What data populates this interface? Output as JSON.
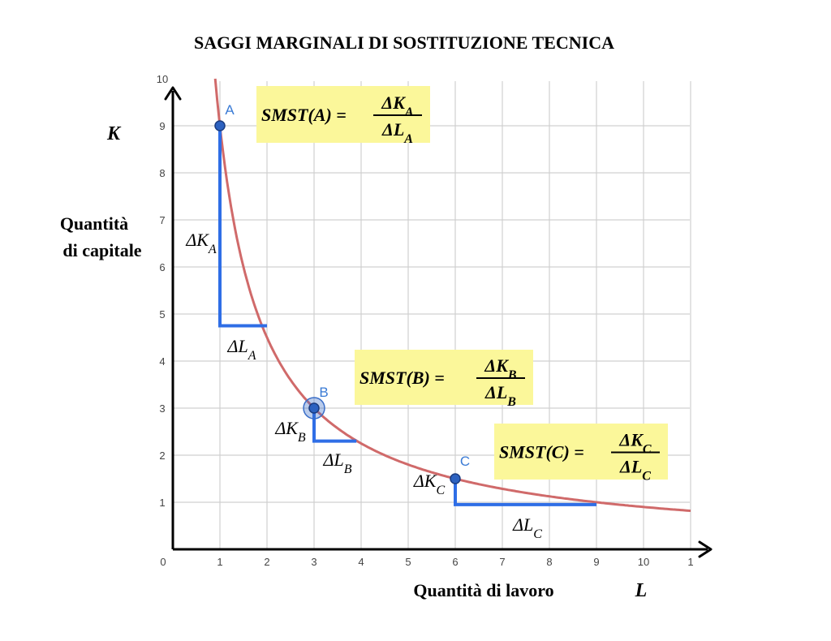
{
  "chart_data": {
    "type": "line",
    "title": "SAGGI MARGINALI DI SOSTITUZIONE TECNICA",
    "xlabel": "Quantità di lavoro",
    "xsymbol": "L",
    "ylabel_line1": "Quantità",
    "ylabel_line2": "di capitale",
    "ysymbol": "K",
    "xlim": [
      0,
      11
    ],
    "ylim": [
      0,
      10
    ],
    "x_ticks": [
      "0",
      "1",
      "2",
      "3",
      "4",
      "5",
      "6",
      "7",
      "8",
      "9",
      "10",
      "1"
    ],
    "y_ticks": [
      "1",
      "2",
      "3",
      "4",
      "5",
      "6",
      "7",
      "8",
      "9",
      "10"
    ],
    "grid": true,
    "curve": {
      "type": "isoquant",
      "equation": "K = 9 / L",
      "x_range": [
        0.9,
        11
      ],
      "color": "#d06a6a"
    },
    "points": [
      {
        "label": "A",
        "x": 1,
        "y": 9
      },
      {
        "label": "B",
        "x": 3,
        "y": 3
      },
      {
        "label": "C",
        "x": 6,
        "y": 1.5
      }
    ],
    "steps": [
      {
        "from": [
          1,
          9
        ],
        "corner": [
          1,
          4.75
        ],
        "to": [
          2,
          4.75
        ],
        "dK": "ΔK",
        "dK_sub": "A",
        "dL": "ΔL",
        "dL_sub": "A"
      },
      {
        "from": [
          3,
          3
        ],
        "corner": [
          3,
          2.3
        ],
        "to": [
          3.9,
          2.3
        ],
        "dK": "ΔK",
        "dK_sub": "B",
        "dL": "ΔL",
        "dL_sub": "B"
      },
      {
        "from": [
          6,
          1.5
        ],
        "corner": [
          6,
          0.95
        ],
        "to": [
          9,
          0.95
        ],
        "dK": "ΔK",
        "dK_sub": "C",
        "dL": "ΔL",
        "dL_sub": "C"
      }
    ],
    "formulas": [
      {
        "lhs": "SMST(A) =",
        "num": "ΔK",
        "num_sub": "A",
        "den": "ΔL",
        "den_sub": "A"
      },
      {
        "lhs": "SMST(B) =",
        "num": "ΔK",
        "num_sub": "B",
        "den": "ΔL",
        "den_sub": "B"
      },
      {
        "lhs": "SMST(C) =",
        "num": "ΔK",
        "num_sub": "C",
        "den": "ΔL",
        "den_sub": "C"
      }
    ],
    "colors": {
      "curve": "#d06a6a",
      "steps": "#2f6ee6",
      "point_fill": "#2d62c0",
      "point_label": "#3a7bd5",
      "formula_bg": "#fbf79a",
      "grid": "#d0d0d0"
    }
  }
}
